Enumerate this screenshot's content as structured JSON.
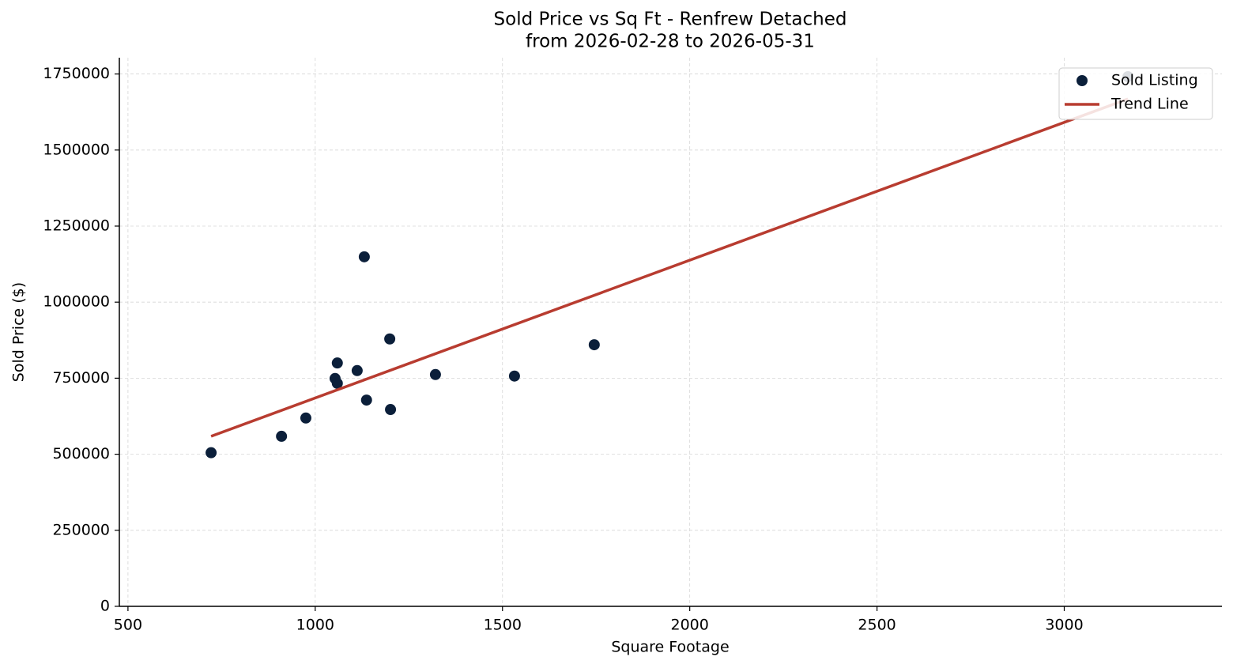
{
  "chart_data": {
    "type": "scatter",
    "title": "Sold Price vs Sq Ft - Renfrew Detached",
    "subtitle": "from 2026-02-28 to 2026-05-31",
    "x_label": "Square Footage",
    "y_label": "Sold Price ($)",
    "xlim": [
      477,
      3421
    ],
    "ylim": [
      0,
      1803500
    ],
    "xticks": [
      500,
      1000,
      1500,
      2000,
      2500,
      3000
    ],
    "yticks": [
      0,
      250000,
      500000,
      750000,
      1000000,
      1250000,
      1500000,
      1750000
    ],
    "grid": true,
    "legend": "upper right",
    "series": [
      {
        "name": "Sold Listing",
        "type": "scatter",
        "color": "#0b1f3a",
        "x": [
          722,
          910,
          975,
          1053,
          1059,
          1059,
          1112,
          1131,
          1137,
          1199,
          1201,
          1321,
          1532,
          1745,
          3170
        ],
        "values": [
          505000,
          559000,
          619000,
          749000,
          800000,
          733000,
          775000,
          1149000,
          678000,
          879000,
          647000,
          762000,
          757000,
          860000,
          1741000
        ]
      },
      {
        "name": "Trend Line",
        "type": "line",
        "color": "#b83c30",
        "x": [
          722,
          3170
        ],
        "values": [
          559000,
          1668000
        ]
      }
    ]
  }
}
